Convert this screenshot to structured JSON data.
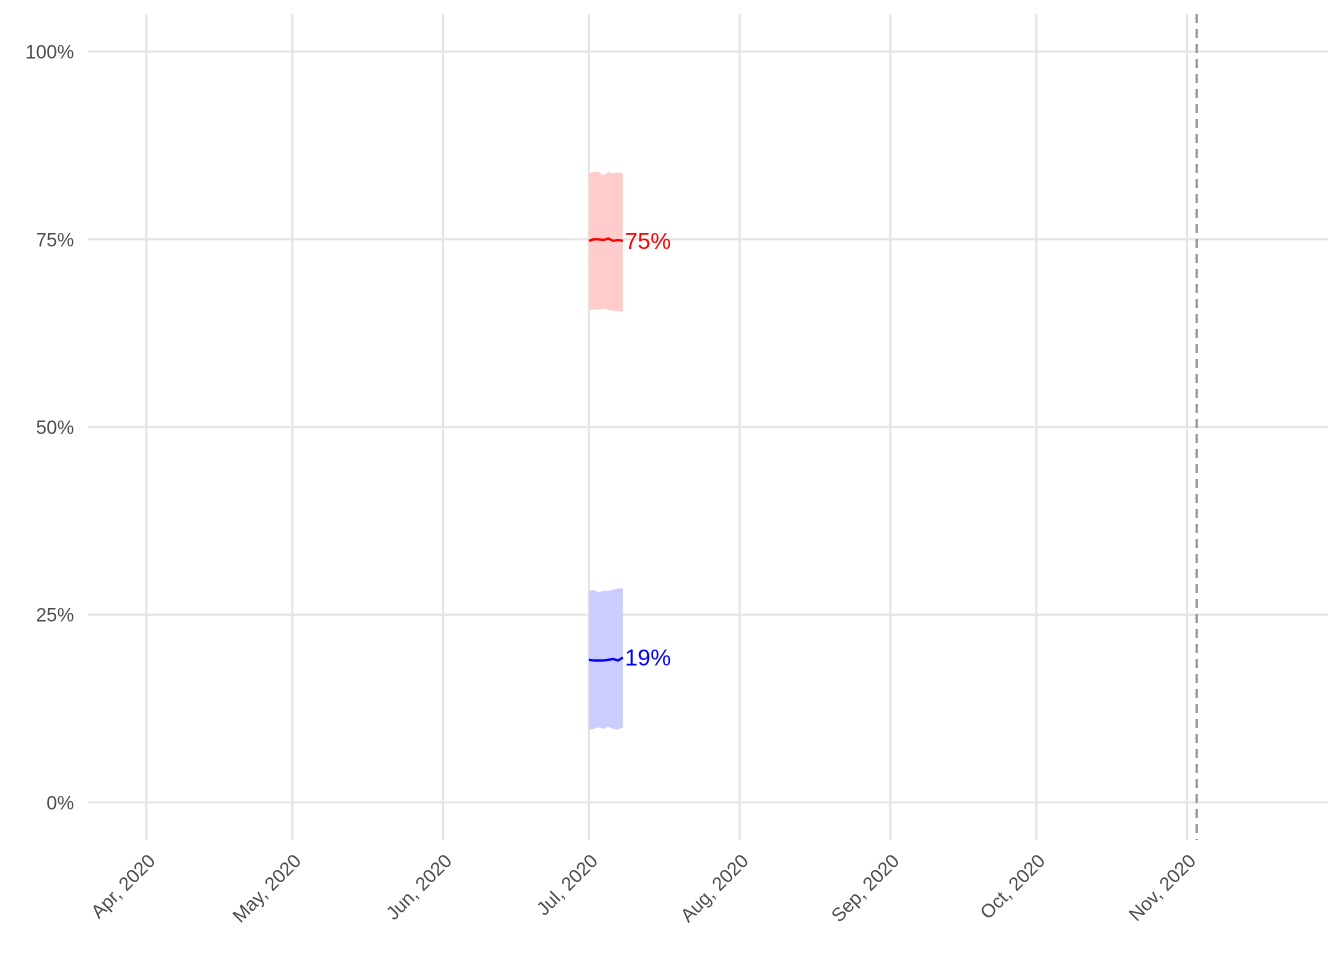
{
  "chart_data": {
    "type": "line",
    "title": "",
    "xlabel": "",
    "ylabel": "",
    "x_axis": {
      "type": "date",
      "range": [
        "2020-03-20",
        "2020-11-30"
      ],
      "ticks": [
        {
          "date": "2020-04-01",
          "label": "Apr, 2020"
        },
        {
          "date": "2020-05-01",
          "label": "May, 2020"
        },
        {
          "date": "2020-06-01",
          "label": "Jun, 2020"
        },
        {
          "date": "2020-07-01",
          "label": "Jul, 2020"
        },
        {
          "date": "2020-08-01",
          "label": "Aug, 2020"
        },
        {
          "date": "2020-09-01",
          "label": "Sep, 2020"
        },
        {
          "date": "2020-10-01",
          "label": "Oct, 2020"
        },
        {
          "date": "2020-11-01",
          "label": "Nov, 2020"
        }
      ]
    },
    "y_axis": {
      "range": [
        -0.05,
        1.05
      ],
      "ticks": [
        {
          "value": 0,
          "label": "0%"
        },
        {
          "value": 0.25,
          "label": "25%"
        },
        {
          "value": 0.5,
          "label": "50%"
        },
        {
          "value": 0.75,
          "label": "75%"
        },
        {
          "value": 1,
          "label": "100%"
        }
      ]
    },
    "grid": true,
    "reference_line": {
      "date": "2020-11-03",
      "style": "dashed",
      "color": "#999999"
    },
    "series": [
      {
        "color": "#ff0000",
        "band_color": "#ffcccc",
        "end_label": "75%",
        "points": [
          {
            "date": "2020-07-01",
            "y": 0.748,
            "lo": 0.655,
            "hi": 0.838
          },
          {
            "date": "2020-07-02",
            "y": 0.75,
            "lo": 0.657,
            "hi": 0.84
          },
          {
            "date": "2020-07-03",
            "y": 0.75,
            "lo": 0.656,
            "hi": 0.84
          },
          {
            "date": "2020-07-04",
            "y": 0.749,
            "lo": 0.658,
            "hi": 0.835
          },
          {
            "date": "2020-07-05",
            "y": 0.751,
            "lo": 0.656,
            "hi": 0.84
          },
          {
            "date": "2020-07-06",
            "y": 0.748,
            "lo": 0.655,
            "hi": 0.838
          },
          {
            "date": "2020-07-07",
            "y": 0.749,
            "lo": 0.654,
            "hi": 0.839
          },
          {
            "date": "2020-07-08",
            "y": 0.748,
            "lo": 0.654,
            "hi": 0.838
          }
        ]
      },
      {
        "color": "#0000ff",
        "band_color": "#ccccff",
        "end_label": "19%",
        "points": [
          {
            "date": "2020-07-01",
            "y": 0.19,
            "lo": 0.097,
            "hi": 0.282
          },
          {
            "date": "2020-07-02",
            "y": 0.189,
            "lo": 0.098,
            "hi": 0.283
          },
          {
            "date": "2020-07-03",
            "y": 0.189,
            "lo": 0.1,
            "hi": 0.28
          },
          {
            "date": "2020-07-04",
            "y": 0.189,
            "lo": 0.098,
            "hi": 0.282
          },
          {
            "date": "2020-07-05",
            "y": 0.19,
            "lo": 0.101,
            "hi": 0.282
          },
          {
            "date": "2020-07-06",
            "y": 0.191,
            "lo": 0.098,
            "hi": 0.283
          },
          {
            "date": "2020-07-07",
            "y": 0.189,
            "lo": 0.097,
            "hi": 0.285
          },
          {
            "date": "2020-07-08",
            "y": 0.193,
            "lo": 0.1,
            "hi": 0.285
          }
        ]
      }
    ]
  }
}
